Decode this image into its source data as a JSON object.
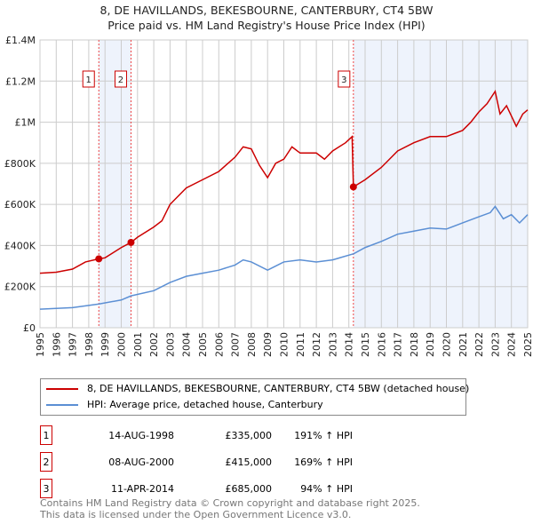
{
  "chart_data": {
    "type": "line",
    "title": "8, DE HAVILLANDS, BEKESBOURNE, CANTERBURY, CT4 5BW",
    "subtitle": "Price paid vs. HM Land Registry's House Price Index (HPI)",
    "xlim": [
      1995,
      2025
    ],
    "ylim": [
      0,
      1400000
    ],
    "x_ticks": [
      "1995",
      "1996",
      "1997",
      "1998",
      "1999",
      "2000",
      "2001",
      "2002",
      "2003",
      "2004",
      "2005",
      "2006",
      "2007",
      "2008",
      "2009",
      "2010",
      "2011",
      "2012",
      "2013",
      "2014",
      "2015",
      "2016",
      "2017",
      "2018",
      "2019",
      "2020",
      "2021",
      "2022",
      "2023",
      "2024",
      "2025"
    ],
    "y_ticks": [
      {
        "v": 0,
        "label": "£0"
      },
      {
        "v": 200000,
        "label": "£200K"
      },
      {
        "v": 400000,
        "label": "£400K"
      },
      {
        "v": 600000,
        "label": "£600K"
      },
      {
        "v": 800000,
        "label": "£800K"
      },
      {
        "v": 1000000,
        "label": "£1M"
      },
      {
        "v": 1200000,
        "label": "£1.2M"
      },
      {
        "v": 1400000,
        "label": "£1.4M"
      }
    ],
    "grid": true,
    "series": [
      {
        "name": "8, DE HAVILLANDS, BEKESBOURNE, CANTERBURY, CT4 5BW (detached house)",
        "color": "#cc0000",
        "points": [
          [
            1995,
            265000
          ],
          [
            1996,
            270000
          ],
          [
            1997,
            285000
          ],
          [
            1997.8,
            320000
          ],
          [
            1998.6,
            335000
          ],
          [
            1999,
            340000
          ],
          [
            2000,
            390000
          ],
          [
            2000.6,
            415000
          ],
          [
            2001,
            440000
          ],
          [
            2002,
            490000
          ],
          [
            2002.5,
            520000
          ],
          [
            2003,
            600000
          ],
          [
            2004,
            680000
          ],
          [
            2005,
            720000
          ],
          [
            2006,
            760000
          ],
          [
            2007,
            830000
          ],
          [
            2007.5,
            880000
          ],
          [
            2008,
            870000
          ],
          [
            2008.5,
            790000
          ],
          [
            2009,
            730000
          ],
          [
            2009.5,
            800000
          ],
          [
            2010,
            820000
          ],
          [
            2010.5,
            880000
          ],
          [
            2011,
            850000
          ],
          [
            2012,
            850000
          ],
          [
            2012.5,
            820000
          ],
          [
            2013,
            860000
          ],
          [
            2013.8,
            900000
          ],
          [
            2014.2,
            930000
          ],
          [
            2014.28,
            685000
          ],
          [
            2015,
            720000
          ],
          [
            2016,
            780000
          ],
          [
            2017,
            860000
          ],
          [
            2018,
            900000
          ],
          [
            2019,
            930000
          ],
          [
            2020,
            930000
          ],
          [
            2021,
            960000
          ],
          [
            2021.5,
            1000000
          ],
          [
            2022,
            1050000
          ],
          [
            2022.5,
            1090000
          ],
          [
            2023,
            1150000
          ],
          [
            2023.3,
            1040000
          ],
          [
            2023.7,
            1080000
          ],
          [
            2024.3,
            980000
          ],
          [
            2024.7,
            1040000
          ],
          [
            2025,
            1060000
          ]
        ]
      },
      {
        "name": "HPI: Average price, detached house, Canterbury",
        "color": "#5b8fd4",
        "points": [
          [
            1995,
            90000
          ],
          [
            1997,
            98000
          ],
          [
            1998.6,
            115000
          ],
          [
            2000,
            135000
          ],
          [
            2000.6,
            155000
          ],
          [
            2002,
            180000
          ],
          [
            2003,
            220000
          ],
          [
            2004,
            250000
          ],
          [
            2005,
            265000
          ],
          [
            2006,
            280000
          ],
          [
            2007,
            305000
          ],
          [
            2007.5,
            330000
          ],
          [
            2008,
            320000
          ],
          [
            2009,
            280000
          ],
          [
            2009.5,
            300000
          ],
          [
            2010,
            320000
          ],
          [
            2011,
            330000
          ],
          [
            2012,
            320000
          ],
          [
            2013,
            330000
          ],
          [
            2014.3,
            360000
          ],
          [
            2015,
            390000
          ],
          [
            2016,
            420000
          ],
          [
            2017,
            455000
          ],
          [
            2018,
            470000
          ],
          [
            2019,
            485000
          ],
          [
            2020,
            480000
          ],
          [
            2021,
            510000
          ],
          [
            2022,
            540000
          ],
          [
            2022.7,
            560000
          ],
          [
            2023,
            590000
          ],
          [
            2023.5,
            530000
          ],
          [
            2024,
            550000
          ],
          [
            2024.5,
            510000
          ],
          [
            2025,
            550000
          ]
        ]
      }
    ],
    "sales": [
      {
        "label": "1",
        "date": "14-AUG-1998",
        "x": 1998.62,
        "price": 335000,
        "price_text": "£335,000",
        "hpi": "191% ↑ HPI"
      },
      {
        "label": "2",
        "date": "08-AUG-2000",
        "x": 2000.6,
        "price": 415000,
        "price_text": "£415,000",
        "hpi": "169% ↑ HPI"
      },
      {
        "label": "3",
        "date": "11-APR-2014",
        "x": 2014.28,
        "price": 685000,
        "price_text": "£685,000",
        "hpi": "94% ↑ HPI"
      }
    ],
    "legend_position": "below"
  },
  "footer": [
    "Contains HM Land Registry data © Crown copyright and database right 2025.",
    "This data is licensed under the Open Government Licence v3.0."
  ]
}
